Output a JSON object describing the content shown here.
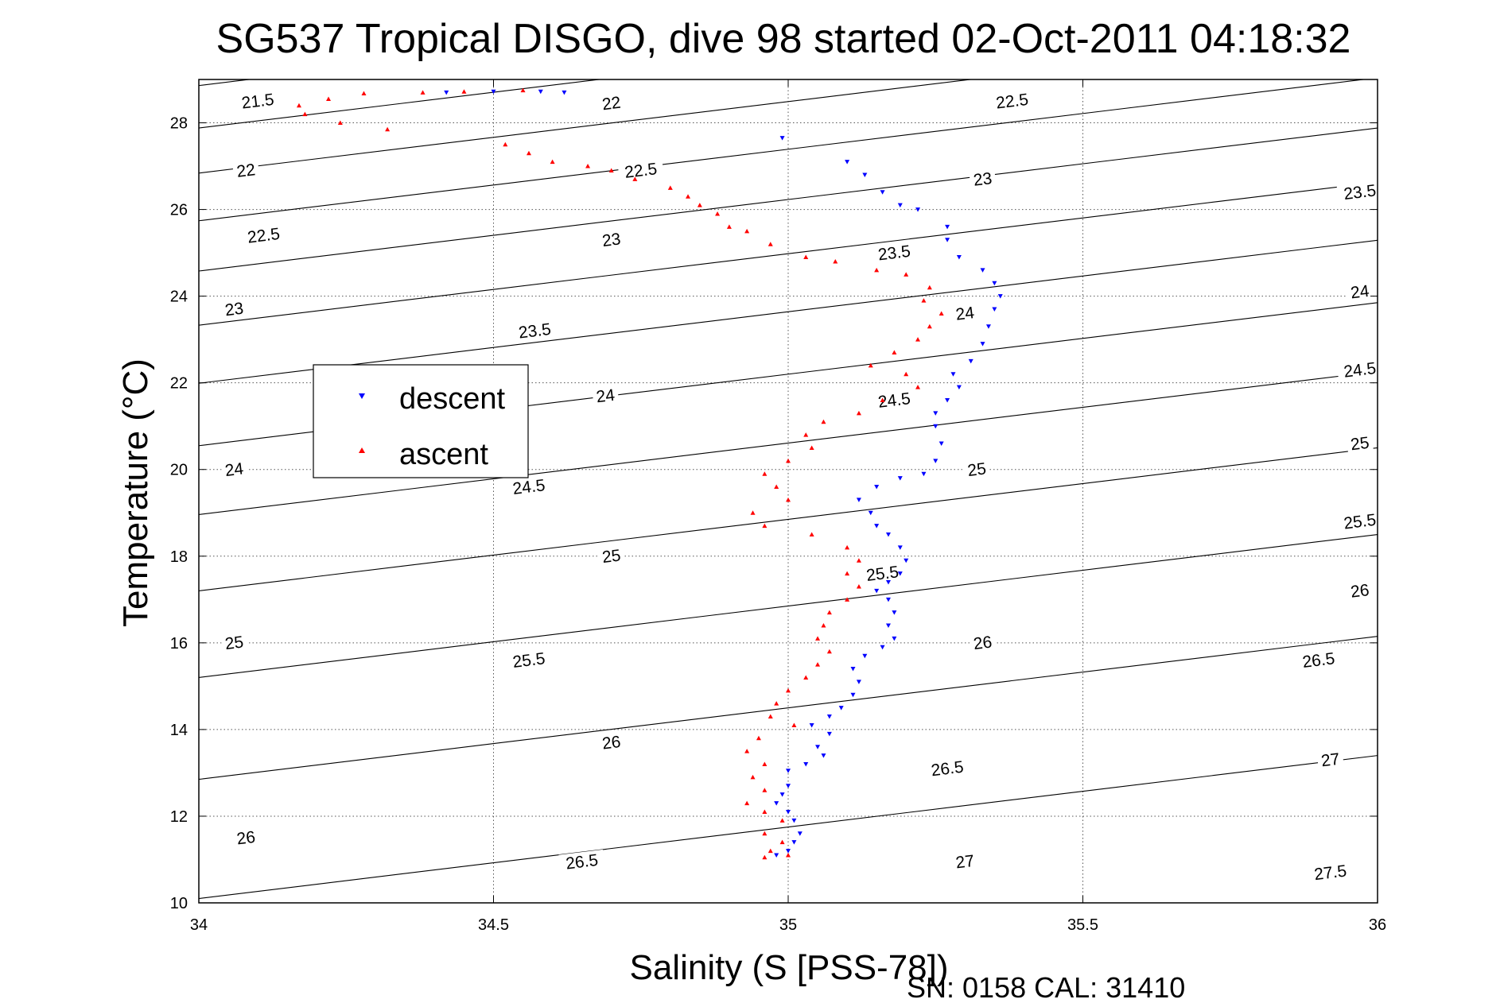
{
  "chart_data": {
    "type": "scatter",
    "title": "SG537 Tropical DISGO, dive 98 started 02-Oct-2011 04:18:32",
    "xlabel": "Salinity (S [PSS-78])",
    "ylabel": "Temperature (°C)",
    "xlim": [
      34,
      36
    ],
    "ylim": [
      10,
      29
    ],
    "x_ticks": [
      "34",
      "34.5",
      "35",
      "35.5",
      "36"
    ],
    "y_ticks": [
      "10",
      "12",
      "14",
      "16",
      "18",
      "20",
      "22",
      "24",
      "26",
      "28"
    ],
    "grid": true,
    "legend_position": "center-left",
    "legend": [
      "descent",
      "ascent"
    ],
    "series": [
      {
        "name": "descent",
        "color": "#0000ff",
        "marker": "triangle-down",
        "points": [
          [
            34.42,
            28.7
          ],
          [
            34.5,
            28.72
          ],
          [
            34.58,
            28.72
          ],
          [
            34.62,
            28.7
          ],
          [
            34.99,
            27.65
          ],
          [
            35.1,
            27.1
          ],
          [
            35.13,
            26.8
          ],
          [
            35.16,
            26.4
          ],
          [
            35.19,
            26.1
          ],
          [
            35.22,
            26.0
          ],
          [
            35.27,
            25.6
          ],
          [
            35.27,
            25.3
          ],
          [
            35.29,
            24.9
          ],
          [
            35.33,
            24.6
          ],
          [
            35.35,
            24.3
          ],
          [
            35.36,
            24.0
          ],
          [
            35.35,
            23.7
          ],
          [
            35.34,
            23.3
          ],
          [
            35.33,
            22.9
          ],
          [
            35.31,
            22.5
          ],
          [
            35.28,
            22.2
          ],
          [
            35.29,
            21.9
          ],
          [
            35.27,
            21.6
          ],
          [
            35.25,
            21.3
          ],
          [
            35.25,
            21.0
          ],
          [
            35.26,
            20.6
          ],
          [
            35.25,
            20.2
          ],
          [
            35.23,
            19.9
          ],
          [
            35.19,
            19.8
          ],
          [
            35.15,
            19.6
          ],
          [
            35.12,
            19.3
          ],
          [
            35.14,
            19.0
          ],
          [
            35.15,
            18.7
          ],
          [
            35.17,
            18.5
          ],
          [
            35.19,
            18.2
          ],
          [
            35.2,
            17.9
          ],
          [
            35.19,
            17.6
          ],
          [
            35.17,
            17.4
          ],
          [
            35.15,
            17.2
          ],
          [
            35.17,
            17.0
          ],
          [
            35.18,
            16.7
          ],
          [
            35.17,
            16.4
          ],
          [
            35.18,
            16.1
          ],
          [
            35.16,
            15.9
          ],
          [
            35.13,
            15.7
          ],
          [
            35.11,
            15.4
          ],
          [
            35.12,
            15.1
          ],
          [
            35.11,
            14.8
          ],
          [
            35.09,
            14.5
          ],
          [
            35.07,
            14.3
          ],
          [
            35.04,
            14.1
          ],
          [
            35.07,
            13.9
          ],
          [
            35.05,
            13.6
          ],
          [
            35.06,
            13.4
          ],
          [
            35.03,
            13.2
          ],
          [
            35.0,
            13.05
          ],
          [
            35.0,
            12.7
          ],
          [
            34.99,
            12.5
          ],
          [
            34.98,
            12.3
          ],
          [
            35.0,
            12.1
          ],
          [
            35.01,
            11.9
          ],
          [
            35.02,
            11.6
          ],
          [
            35.01,
            11.4
          ],
          [
            35.0,
            11.2
          ],
          [
            34.98,
            11.1
          ]
        ]
      },
      {
        "name": "ascent",
        "color": "#ff0000",
        "marker": "triangle-up",
        "points": [
          [
            34.55,
            28.75
          ],
          [
            34.45,
            28.72
          ],
          [
            34.38,
            28.7
          ],
          [
            34.28,
            28.68
          ],
          [
            34.22,
            28.55
          ],
          [
            34.17,
            28.4
          ],
          [
            34.18,
            28.2
          ],
          [
            34.24,
            28.0
          ],
          [
            34.32,
            27.85
          ],
          [
            34.52,
            27.5
          ],
          [
            34.56,
            27.3
          ],
          [
            34.6,
            27.1
          ],
          [
            34.66,
            27.0
          ],
          [
            34.7,
            26.9
          ],
          [
            34.74,
            26.7
          ],
          [
            34.8,
            26.5
          ],
          [
            34.83,
            26.3
          ],
          [
            34.85,
            26.1
          ],
          [
            34.88,
            25.9
          ],
          [
            34.9,
            25.6
          ],
          [
            34.93,
            25.5
          ],
          [
            34.97,
            25.2
          ],
          [
            35.03,
            24.9
          ],
          [
            35.08,
            24.8
          ],
          [
            35.15,
            24.6
          ],
          [
            35.2,
            24.5
          ],
          [
            35.24,
            24.2
          ],
          [
            35.23,
            23.9
          ],
          [
            35.26,
            23.6
          ],
          [
            35.24,
            23.3
          ],
          [
            35.22,
            23.0
          ],
          [
            35.18,
            22.7
          ],
          [
            35.14,
            22.4
          ],
          [
            35.2,
            22.2
          ],
          [
            35.22,
            21.9
          ],
          [
            35.16,
            21.6
          ],
          [
            35.12,
            21.3
          ],
          [
            35.06,
            21.1
          ],
          [
            35.03,
            20.8
          ],
          [
            35.04,
            20.5
          ],
          [
            35.0,
            20.2
          ],
          [
            34.96,
            19.9
          ],
          [
            34.98,
            19.6
          ],
          [
            35.0,
            19.3
          ],
          [
            34.94,
            19.0
          ],
          [
            34.96,
            18.7
          ],
          [
            35.04,
            18.5
          ],
          [
            35.1,
            18.2
          ],
          [
            35.12,
            17.9
          ],
          [
            35.1,
            17.6
          ],
          [
            35.12,
            17.3
          ],
          [
            35.1,
            17.0
          ],
          [
            35.07,
            16.7
          ],
          [
            35.06,
            16.4
          ],
          [
            35.05,
            16.1
          ],
          [
            35.07,
            15.8
          ],
          [
            35.05,
            15.5
          ],
          [
            35.03,
            15.2
          ],
          [
            35.0,
            14.9
          ],
          [
            34.98,
            14.6
          ],
          [
            34.97,
            14.3
          ],
          [
            35.01,
            14.1
          ],
          [
            34.95,
            13.8
          ],
          [
            34.93,
            13.5
          ],
          [
            34.96,
            13.2
          ],
          [
            34.94,
            12.9
          ],
          [
            34.96,
            12.6
          ],
          [
            34.93,
            12.3
          ],
          [
            34.96,
            12.1
          ],
          [
            34.99,
            11.9
          ],
          [
            34.96,
            11.6
          ],
          [
            34.99,
            11.4
          ],
          [
            34.97,
            11.2
          ],
          [
            34.96,
            11.05
          ],
          [
            35.0,
            11.1
          ]
        ]
      }
    ],
    "contours": {
      "levels": [
        "21.5",
        "22",
        "22.5",
        "23",
        "23.5",
        "24",
        "24.5",
        "25",
        "25.5",
        "26",
        "26.5",
        "27",
        "27.5"
      ],
      "lines": [
        {
          "level": 21.5,
          "start": [
            34,
            28.86
          ],
          "slope": 1.65
        },
        {
          "level": 22,
          "start": [
            34,
            27.88
          ],
          "slope": 1.65
        },
        {
          "level": 22.5,
          "start": [
            34,
            26.84
          ],
          "slope": 1.65
        },
        {
          "level": 23,
          "start": [
            34,
            25.74
          ],
          "slope": 1.65
        },
        {
          "level": 23.5,
          "start": [
            34,
            24.58
          ],
          "slope": 1.65
        },
        {
          "level": 24,
          "start": [
            34,
            23.33
          ],
          "slope": 1.65
        },
        {
          "level": 24.5,
          "start": [
            34,
            21.99
          ],
          "slope": 1.65
        },
        {
          "level": 25,
          "start": [
            34,
            20.55
          ],
          "slope": 1.65
        },
        {
          "level": 25.5,
          "start": [
            34,
            18.96
          ],
          "slope": 1.65
        },
        {
          "level": 26,
          "start": [
            34,
            17.2
          ],
          "slope": 1.65
        },
        {
          "level": 26.5,
          "start": [
            34,
            15.2
          ],
          "slope": 1.65
        },
        {
          "level": 27,
          "start": [
            34,
            12.85
          ],
          "slope": 1.65
        },
        {
          "level": 27.5,
          "start": [
            34,
            10.1
          ],
          "slope": 1.65
        }
      ],
      "labels": [
        {
          "text": "21.5",
          "at": [
            34.1,
            28.5
          ]
        },
        {
          "text": "22",
          "at": [
            34.7,
            28.45
          ]
        },
        {
          "text": "22.5",
          "at": [
            35.38,
            28.5
          ]
        },
        {
          "text": "22",
          "at": [
            34.08,
            26.9
          ]
        },
        {
          "text": "22.5",
          "at": [
            34.75,
            26.9
          ]
        },
        {
          "text": "23",
          "at": [
            35.33,
            26.7
          ]
        },
        {
          "text": "23.5",
          "at": [
            35.97,
            26.4
          ]
        },
        {
          "text": "22.5",
          "at": [
            34.11,
            25.4
          ]
        },
        {
          "text": "23",
          "at": [
            34.7,
            25.3
          ]
        },
        {
          "text": "23.5",
          "at": [
            35.18,
            25.0
          ]
        },
        {
          "text": "24",
          "at": [
            35.3,
            23.6
          ]
        },
        {
          "text": "24",
          "at": [
            35.97,
            24.1
          ]
        },
        {
          "text": "23",
          "at": [
            34.06,
            23.7
          ]
        },
        {
          "text": "23.5",
          "at": [
            34.57,
            23.2
          ]
        },
        {
          "text": "24.5",
          "at": [
            35.18,
            21.6
          ]
        },
        {
          "text": "24.5",
          "at": [
            35.97,
            22.3
          ]
        },
        {
          "text": "24",
          "at": [
            34.69,
            21.7
          ]
        },
        {
          "text": "24",
          "at": [
            34.06,
            20.0
          ]
        },
        {
          "text": "25",
          "at": [
            35.32,
            20.0
          ]
        },
        {
          "text": "25",
          "at": [
            35.97,
            20.6
          ]
        },
        {
          "text": "24.5",
          "at": [
            34.56,
            19.6
          ]
        },
        {
          "text": "25.5",
          "at": [
            35.97,
            18.8
          ]
        },
        {
          "text": "25",
          "at": [
            34.7,
            18.0
          ]
        },
        {
          "text": "25.5",
          "at": [
            35.16,
            17.6
          ]
        },
        {
          "text": "26",
          "at": [
            35.97,
            17.2
          ]
        },
        {
          "text": "25",
          "at": [
            34.06,
            16.0
          ]
        },
        {
          "text": "26",
          "at": [
            35.33,
            16.0
          ]
        },
        {
          "text": "25.5",
          "at": [
            34.56,
            15.6
          ]
        },
        {
          "text": "26.5",
          "at": [
            35.9,
            15.6
          ]
        },
        {
          "text": "26",
          "at": [
            34.7,
            13.7
          ]
        },
        {
          "text": "26.5",
          "at": [
            35.27,
            13.1
          ]
        },
        {
          "text": "27",
          "at": [
            35.92,
            13.3
          ]
        },
        {
          "text": "26",
          "at": [
            34.08,
            11.5
          ]
        },
        {
          "text": "26.5",
          "at": [
            34.65,
            10.95
          ]
        },
        {
          "text": "27",
          "at": [
            35.3,
            10.95
          ]
        },
        {
          "text": "27.5",
          "at": [
            35.92,
            10.7
          ]
        }
      ]
    }
  },
  "footer": {
    "text": "SN: 0158  CAL: 31410"
  }
}
